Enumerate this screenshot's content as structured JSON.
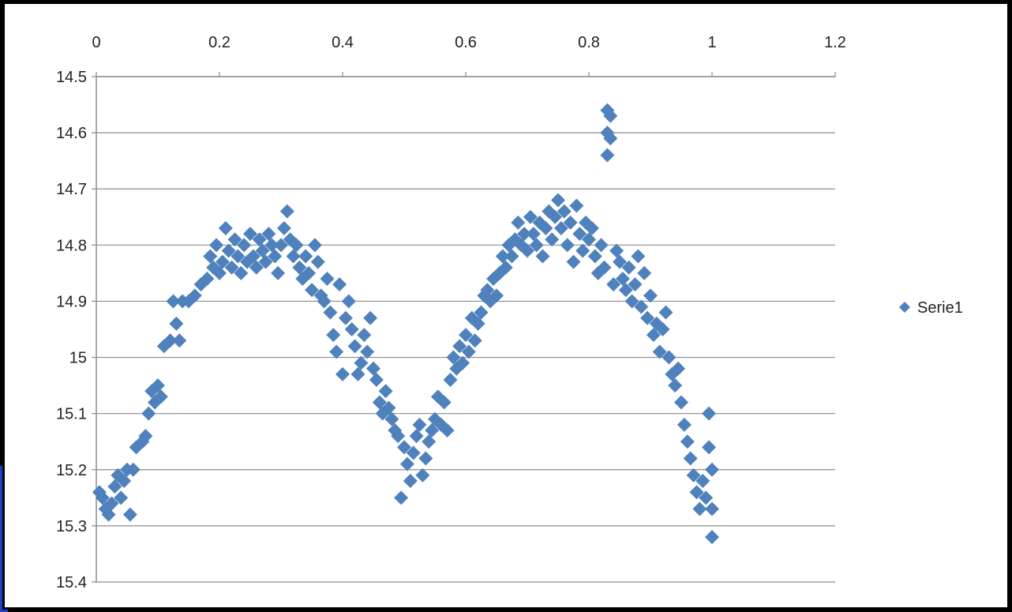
{
  "chart_data": {
    "type": "scatter",
    "title": "",
    "xlabel": "",
    "ylabel": "",
    "xlim": [
      0,
      1.2
    ],
    "ylim": [
      14.5,
      15.4
    ],
    "y_reversed": true,
    "x_axis_position": "top",
    "x_ticks": [
      "0",
      "0.2",
      "0.4",
      "0.6",
      "0.8",
      "1",
      "1.2"
    ],
    "y_ticks": [
      "14.5",
      "14.6",
      "14.7",
      "14.8",
      "14.9",
      "15",
      "15.1",
      "15.2",
      "15.3",
      "15.4"
    ],
    "grid": "horizontal",
    "legend": {
      "position": "right",
      "entries": [
        "Serie1"
      ]
    },
    "marker_color": "#4f81bd",
    "series": [
      {
        "name": "Serie1",
        "points": [
          [
            0.005,
            15.24
          ],
          [
            0.01,
            15.25
          ],
          [
            0.015,
            15.27
          ],
          [
            0.02,
            15.28
          ],
          [
            0.025,
            15.26
          ],
          [
            0.03,
            15.23
          ],
          [
            0.035,
            15.21
          ],
          [
            0.04,
            15.25
          ],
          [
            0.045,
            15.22
          ],
          [
            0.05,
            15.2
          ],
          [
            0.055,
            15.28
          ],
          [
            0.06,
            15.2
          ],
          [
            0.065,
            15.16
          ],
          [
            0.075,
            15.15
          ],
          [
            0.08,
            15.14
          ],
          [
            0.085,
            15.1
          ],
          [
            0.09,
            15.06
          ],
          [
            0.095,
            15.08
          ],
          [
            0.1,
            15.05
          ],
          [
            0.105,
            15.07
          ],
          [
            0.11,
            14.98
          ],
          [
            0.12,
            14.97
          ],
          [
            0.125,
            14.9
          ],
          [
            0.13,
            14.94
          ],
          [
            0.135,
            14.97
          ],
          [
            0.14,
            14.9
          ],
          [
            0.15,
            14.9
          ],
          [
            0.16,
            14.89
          ],
          [
            0.17,
            14.87
          ],
          [
            0.18,
            14.86
          ],
          [
            0.185,
            14.82
          ],
          [
            0.19,
            14.84
          ],
          [
            0.195,
            14.8
          ],
          [
            0.2,
            14.85
          ],
          [
            0.205,
            14.83
          ],
          [
            0.21,
            14.77
          ],
          [
            0.215,
            14.81
          ],
          [
            0.22,
            14.84
          ],
          [
            0.225,
            14.79
          ],
          [
            0.23,
            14.82
          ],
          [
            0.235,
            14.85
          ],
          [
            0.24,
            14.8
          ],
          [
            0.245,
            14.83
          ],
          [
            0.25,
            14.78
          ],
          [
            0.255,
            14.82
          ],
          [
            0.26,
            14.84
          ],
          [
            0.265,
            14.79
          ],
          [
            0.27,
            14.81
          ],
          [
            0.275,
            14.83
          ],
          [
            0.28,
            14.78
          ],
          [
            0.285,
            14.8
          ],
          [
            0.29,
            14.82
          ],
          [
            0.295,
            14.85
          ],
          [
            0.3,
            14.8
          ],
          [
            0.305,
            14.77
          ],
          [
            0.31,
            14.74
          ],
          [
            0.315,
            14.79
          ],
          [
            0.32,
            14.82
          ],
          [
            0.325,
            14.8
          ],
          [
            0.33,
            14.84
          ],
          [
            0.335,
            14.86
          ],
          [
            0.34,
            14.82
          ],
          [
            0.345,
            14.85
          ],
          [
            0.35,
            14.88
          ],
          [
            0.355,
            14.8
          ],
          [
            0.36,
            14.83
          ],
          [
            0.365,
            14.89
          ],
          [
            0.37,
            14.9
          ],
          [
            0.375,
            14.86
          ],
          [
            0.38,
            14.92
          ],
          [
            0.385,
            14.96
          ],
          [
            0.39,
            14.99
          ],
          [
            0.395,
            14.87
          ],
          [
            0.4,
            15.03
          ],
          [
            0.405,
            14.93
          ],
          [
            0.41,
            14.9
          ],
          [
            0.415,
            14.95
          ],
          [
            0.42,
            14.98
          ],
          [
            0.425,
            15.03
          ],
          [
            0.43,
            15.01
          ],
          [
            0.435,
            14.96
          ],
          [
            0.44,
            14.99
          ],
          [
            0.445,
            14.93
          ],
          [
            0.45,
            15.02
          ],
          [
            0.455,
            15.04
          ],
          [
            0.46,
            15.08
          ],
          [
            0.465,
            15.1
          ],
          [
            0.47,
            15.06
          ],
          [
            0.475,
            15.09
          ],
          [
            0.48,
            15.11
          ],
          [
            0.485,
            15.13
          ],
          [
            0.49,
            15.14
          ],
          [
            0.495,
            15.25
          ],
          [
            0.5,
            15.16
          ],
          [
            0.505,
            15.19
          ],
          [
            0.51,
            15.22
          ],
          [
            0.515,
            15.17
          ],
          [
            0.52,
            15.14
          ],
          [
            0.525,
            15.12
          ],
          [
            0.53,
            15.21
          ],
          [
            0.535,
            15.18
          ],
          [
            0.54,
            15.15
          ],
          [
            0.545,
            15.13
          ],
          [
            0.55,
            15.11
          ],
          [
            0.555,
            15.07
          ],
          [
            0.56,
            15.12
          ],
          [
            0.565,
            15.08
          ],
          [
            0.57,
            15.13
          ],
          [
            0.575,
            15.04
          ],
          [
            0.58,
            15.0
          ],
          [
            0.585,
            15.02
          ],
          [
            0.59,
            14.98
          ],
          [
            0.595,
            15.01
          ],
          [
            0.6,
            14.96
          ],
          [
            0.605,
            14.99
          ],
          [
            0.61,
            14.93
          ],
          [
            0.615,
            14.97
          ],
          [
            0.62,
            14.94
          ],
          [
            0.625,
            14.92
          ],
          [
            0.63,
            14.89
          ],
          [
            0.635,
            14.88
          ],
          [
            0.64,
            14.9
          ],
          [
            0.645,
            14.86
          ],
          [
            0.65,
            14.89
          ],
          [
            0.655,
            14.85
          ],
          [
            0.66,
            14.82
          ],
          [
            0.665,
            14.84
          ],
          [
            0.67,
            14.8
          ],
          [
            0.675,
            14.82
          ],
          [
            0.68,
            14.79
          ],
          [
            0.685,
            14.76
          ],
          [
            0.69,
            14.8
          ],
          [
            0.695,
            14.78
          ],
          [
            0.7,
            14.81
          ],
          [
            0.705,
            14.75
          ],
          [
            0.71,
            14.78
          ],
          [
            0.715,
            14.8
          ],
          [
            0.72,
            14.76
          ],
          [
            0.725,
            14.82
          ],
          [
            0.73,
            14.77
          ],
          [
            0.735,
            14.74
          ],
          [
            0.74,
            14.79
          ],
          [
            0.745,
            14.75
          ],
          [
            0.75,
            14.72
          ],
          [
            0.755,
            14.77
          ],
          [
            0.76,
            14.74
          ],
          [
            0.765,
            14.8
          ],
          [
            0.77,
            14.76
          ],
          [
            0.775,
            14.83
          ],
          [
            0.78,
            14.73
          ],
          [
            0.785,
            14.78
          ],
          [
            0.79,
            14.81
          ],
          [
            0.795,
            14.76
          ],
          [
            0.8,
            14.79
          ],
          [
            0.805,
            14.77
          ],
          [
            0.81,
            14.82
          ],
          [
            0.815,
            14.85
          ],
          [
            0.82,
            14.8
          ],
          [
            0.825,
            14.84
          ],
          [
            0.83,
            14.56
          ],
          [
            0.83,
            14.6
          ],
          [
            0.83,
            14.64
          ],
          [
            0.835,
            14.57
          ],
          [
            0.835,
            14.61
          ],
          [
            0.84,
            14.87
          ],
          [
            0.845,
            14.81
          ],
          [
            0.85,
            14.83
          ],
          [
            0.855,
            14.86
          ],
          [
            0.86,
            14.88
          ],
          [
            0.865,
            14.84
          ],
          [
            0.87,
            14.9
          ],
          [
            0.875,
            14.87
          ],
          [
            0.88,
            14.82
          ],
          [
            0.885,
            14.91
          ],
          [
            0.89,
            14.85
          ],
          [
            0.895,
            14.93
          ],
          [
            0.9,
            14.89
          ],
          [
            0.905,
            14.96
          ],
          [
            0.91,
            14.94
          ],
          [
            0.915,
            14.99
          ],
          [
            0.92,
            14.95
          ],
          [
            0.925,
            14.92
          ],
          [
            0.93,
            15.0
          ],
          [
            0.935,
            15.03
          ],
          [
            0.94,
            15.05
          ],
          [
            0.945,
            15.02
          ],
          [
            0.95,
            15.08
          ],
          [
            0.955,
            15.12
          ],
          [
            0.96,
            15.15
          ],
          [
            0.965,
            15.18
          ],
          [
            0.97,
            15.21
          ],
          [
            0.975,
            15.24
          ],
          [
            0.98,
            15.27
          ],
          [
            0.985,
            15.22
          ],
          [
            0.99,
            15.25
          ],
          [
            0.995,
            15.16
          ],
          [
            0.995,
            15.1
          ],
          [
            1.0,
            15.2
          ],
          [
            1.0,
            15.27
          ],
          [
            1.0,
            15.32
          ]
        ]
      }
    ]
  }
}
